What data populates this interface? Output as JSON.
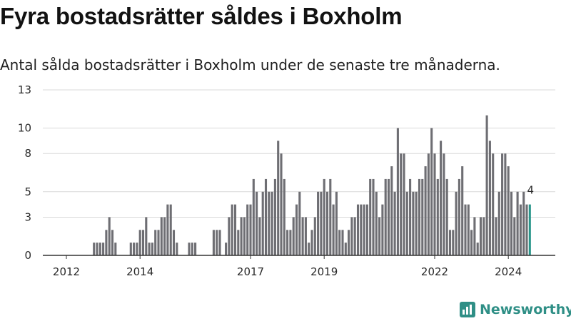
{
  "title": "Fyra bostadsrätter såldes i Boxholm",
  "subtitle": "Antal sålda bostadsrätter i Boxholm under de senaste tre månaderna.",
  "brand": {
    "name": "Newsworthy",
    "icon": "newsworthy-logo-icon",
    "color": "#2f8f86"
  },
  "chart_data": {
    "type": "bar",
    "title": "",
    "xlabel": "",
    "ylabel": "",
    "ylim": [
      0,
      13
    ],
    "y_ticks": [
      0,
      3,
      5,
      8,
      10,
      13
    ],
    "x_tick_labels": [
      "2012",
      "2014",
      "2017",
      "2019",
      "2022",
      "2024"
    ],
    "x_range": [
      "2011-10",
      "2025-06"
    ],
    "grid": true,
    "colors": {
      "bar": "#6e6e73",
      "highlight": "#2a968b",
      "grid": "#d9d9d9",
      "axis": "#333333"
    },
    "highlight_label": "4",
    "bars": [
      {
        "x": "2012-10",
        "y": 1
      },
      {
        "x": "2012-11",
        "y": 1
      },
      {
        "x": "2012-12",
        "y": 1
      },
      {
        "x": "2013-01",
        "y": 1
      },
      {
        "x": "2013-02",
        "y": 2
      },
      {
        "x": "2013-03",
        "y": 3
      },
      {
        "x": "2013-04",
        "y": 2
      },
      {
        "x": "2013-05",
        "y": 1
      },
      {
        "x": "2013-10",
        "y": 1
      },
      {
        "x": "2013-11",
        "y": 1
      },
      {
        "x": "2013-12",
        "y": 1
      },
      {
        "x": "2014-01",
        "y": 2
      },
      {
        "x": "2014-02",
        "y": 2
      },
      {
        "x": "2014-03",
        "y": 3
      },
      {
        "x": "2014-04",
        "y": 1
      },
      {
        "x": "2014-05",
        "y": 1
      },
      {
        "x": "2014-06",
        "y": 2
      },
      {
        "x": "2014-07",
        "y": 2
      },
      {
        "x": "2014-08",
        "y": 3
      },
      {
        "x": "2014-09",
        "y": 3
      },
      {
        "x": "2014-10",
        "y": 4
      },
      {
        "x": "2014-11",
        "y": 4
      },
      {
        "x": "2014-12",
        "y": 2
      },
      {
        "x": "2015-01",
        "y": 1
      },
      {
        "x": "2015-05",
        "y": 1
      },
      {
        "x": "2015-06",
        "y": 1
      },
      {
        "x": "2015-07",
        "y": 1
      },
      {
        "x": "2016-01",
        "y": 2
      },
      {
        "x": "2016-02",
        "y": 2
      },
      {
        "x": "2016-03",
        "y": 2
      },
      {
        "x": "2016-05",
        "y": 1
      },
      {
        "x": "2016-06",
        "y": 3
      },
      {
        "x": "2016-07",
        "y": 4
      },
      {
        "x": "2016-08",
        "y": 4
      },
      {
        "x": "2016-09",
        "y": 2
      },
      {
        "x": "2016-10",
        "y": 3
      },
      {
        "x": "2016-11",
        "y": 3
      },
      {
        "x": "2016-12",
        "y": 4
      },
      {
        "x": "2017-01",
        "y": 4
      },
      {
        "x": "2017-02",
        "y": 6
      },
      {
        "x": "2017-03",
        "y": 5
      },
      {
        "x": "2017-04",
        "y": 3
      },
      {
        "x": "2017-05",
        "y": 5
      },
      {
        "x": "2017-06",
        "y": 6
      },
      {
        "x": "2017-07",
        "y": 5
      },
      {
        "x": "2017-08",
        "y": 5
      },
      {
        "x": "2017-09",
        "y": 6
      },
      {
        "x": "2017-10",
        "y": 9
      },
      {
        "x": "2017-11",
        "y": 8
      },
      {
        "x": "2017-12",
        "y": 6
      },
      {
        "x": "2018-01",
        "y": 2
      },
      {
        "x": "2018-02",
        "y": 2
      },
      {
        "x": "2018-03",
        "y": 3
      },
      {
        "x": "2018-04",
        "y": 4
      },
      {
        "x": "2018-05",
        "y": 5
      },
      {
        "x": "2018-06",
        "y": 3
      },
      {
        "x": "2018-07",
        "y": 3
      },
      {
        "x": "2018-08",
        "y": 1
      },
      {
        "x": "2018-09",
        "y": 2
      },
      {
        "x": "2018-10",
        "y": 3
      },
      {
        "x": "2018-11",
        "y": 5
      },
      {
        "x": "2018-12",
        "y": 5
      },
      {
        "x": "2019-01",
        "y": 6
      },
      {
        "x": "2019-02",
        "y": 5
      },
      {
        "x": "2019-03",
        "y": 6
      },
      {
        "x": "2019-04",
        "y": 4
      },
      {
        "x": "2019-05",
        "y": 5
      },
      {
        "x": "2019-06",
        "y": 2
      },
      {
        "x": "2019-07",
        "y": 2
      },
      {
        "x": "2019-08",
        "y": 1
      },
      {
        "x": "2019-09",
        "y": 2
      },
      {
        "x": "2019-10",
        "y": 3
      },
      {
        "x": "2019-11",
        "y": 3
      },
      {
        "x": "2019-12",
        "y": 4
      },
      {
        "x": "2020-01",
        "y": 4
      },
      {
        "x": "2020-02",
        "y": 4
      },
      {
        "x": "2020-03",
        "y": 4
      },
      {
        "x": "2020-04",
        "y": 6
      },
      {
        "x": "2020-05",
        "y": 6
      },
      {
        "x": "2020-06",
        "y": 5
      },
      {
        "x": "2020-07",
        "y": 3
      },
      {
        "x": "2020-08",
        "y": 4
      },
      {
        "x": "2020-09",
        "y": 6
      },
      {
        "x": "2020-10",
        "y": 6
      },
      {
        "x": "2020-11",
        "y": 7
      },
      {
        "x": "2020-12",
        "y": 5
      },
      {
        "x": "2021-01",
        "y": 10
      },
      {
        "x": "2021-02",
        "y": 8
      },
      {
        "x": "2021-03",
        "y": 8
      },
      {
        "x": "2021-04",
        "y": 5
      },
      {
        "x": "2021-05",
        "y": 6
      },
      {
        "x": "2021-06",
        "y": 5
      },
      {
        "x": "2021-07",
        "y": 5
      },
      {
        "x": "2021-08",
        "y": 6
      },
      {
        "x": "2021-09",
        "y": 6
      },
      {
        "x": "2021-10",
        "y": 7
      },
      {
        "x": "2021-11",
        "y": 8
      },
      {
        "x": "2021-12",
        "y": 10
      },
      {
        "x": "2022-01",
        "y": 8
      },
      {
        "x": "2022-02",
        "y": 6
      },
      {
        "x": "2022-03",
        "y": 9
      },
      {
        "x": "2022-04",
        "y": 8
      },
      {
        "x": "2022-05",
        "y": 6
      },
      {
        "x": "2022-06",
        "y": 2
      },
      {
        "x": "2022-07",
        "y": 2
      },
      {
        "x": "2022-08",
        "y": 5
      },
      {
        "x": "2022-09",
        "y": 6
      },
      {
        "x": "2022-10",
        "y": 7
      },
      {
        "x": "2022-11",
        "y": 4
      },
      {
        "x": "2022-12",
        "y": 4
      },
      {
        "x": "2023-01",
        "y": 2
      },
      {
        "x": "2023-02",
        "y": 3
      },
      {
        "x": "2023-03",
        "y": 1
      },
      {
        "x": "2023-04",
        "y": 3
      },
      {
        "x": "2023-05",
        "y": 3
      },
      {
        "x": "2023-06",
        "y": 11
      },
      {
        "x": "2023-07",
        "y": 9
      },
      {
        "x": "2023-08",
        "y": 8
      },
      {
        "x": "2023-09",
        "y": 3
      },
      {
        "x": "2023-10",
        "y": 5
      },
      {
        "x": "2023-11",
        "y": 8
      },
      {
        "x": "2023-12",
        "y": 8
      },
      {
        "x": "2024-01",
        "y": 7
      },
      {
        "x": "2024-02",
        "y": 5
      },
      {
        "x": "2024-03",
        "y": 3
      },
      {
        "x": "2024-04",
        "y": 5
      },
      {
        "x": "2024-05",
        "y": 4
      },
      {
        "x": "2024-06",
        "y": 5
      },
      {
        "x": "2024-07",
        "y": 4
      },
      {
        "x": "2024-08",
        "y": 4,
        "highlight": true
      }
    ]
  }
}
